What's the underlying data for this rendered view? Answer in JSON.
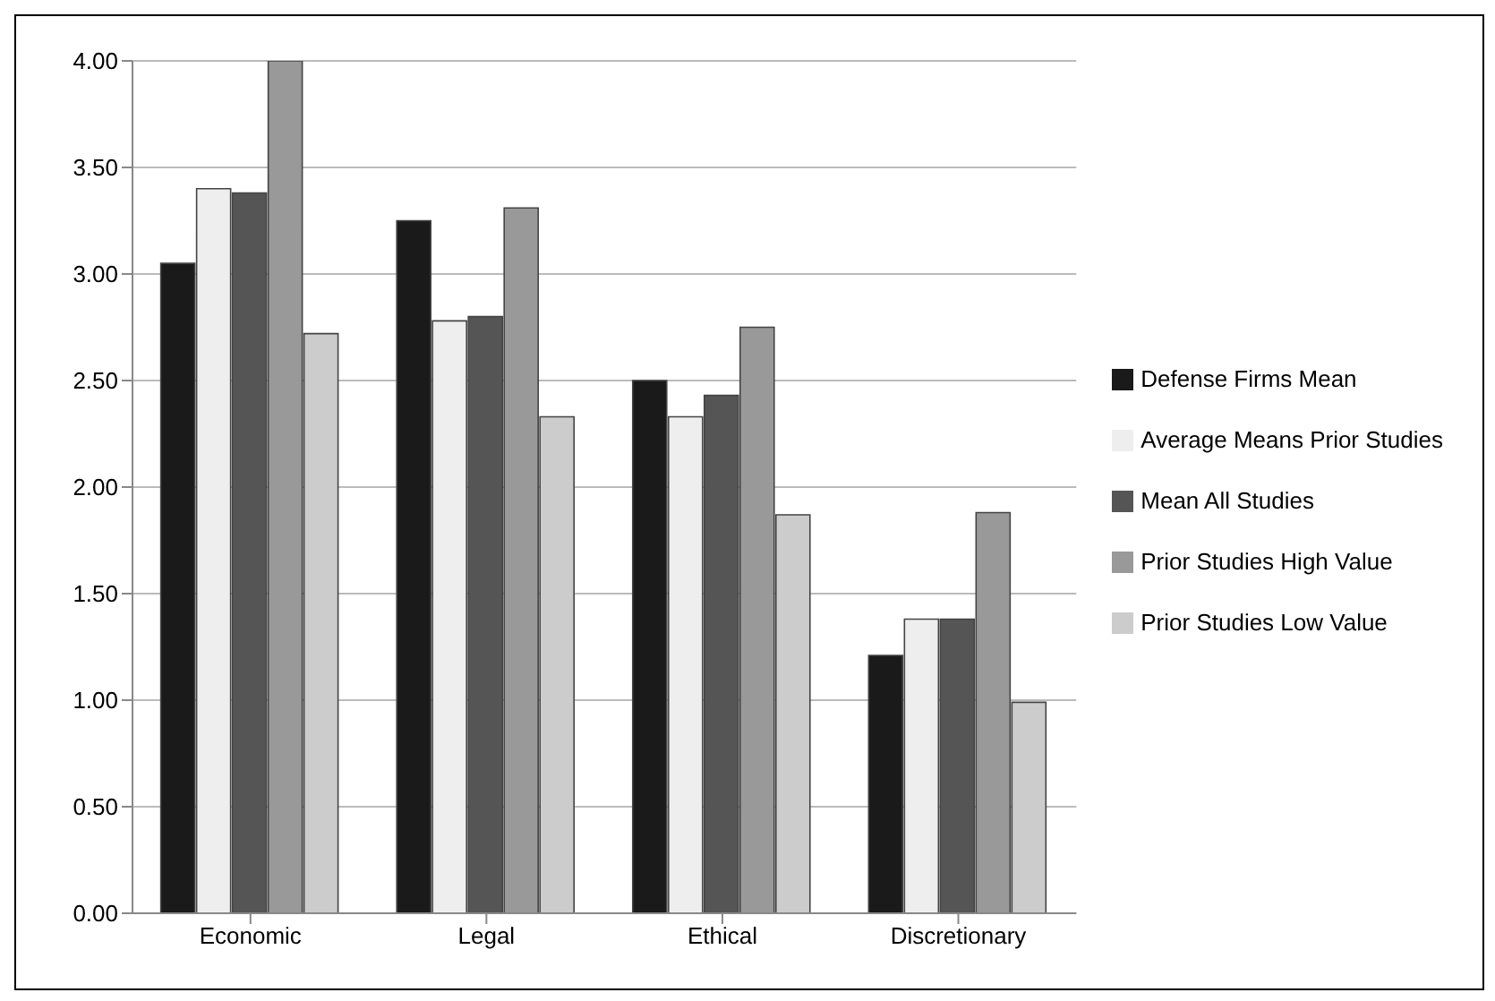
{
  "chart_data": {
    "type": "bar",
    "categories": [
      "Economic",
      "Legal",
      "Ethical",
      "Discretionary"
    ],
    "series": [
      {
        "name": "Defense  Firms Mean",
        "color": "#1a1a1a",
        "values": [
          3.05,
          3.25,
          2.5,
          1.21
        ]
      },
      {
        "name": "Average Means Prior Studies",
        "color": "#eeeeee",
        "values": [
          3.4,
          2.78,
          2.33,
          1.38
        ]
      },
      {
        "name": "Mean All Studies",
        "color": "#555555",
        "values": [
          3.38,
          2.8,
          2.43,
          1.38
        ]
      },
      {
        "name": "Prior Studies High Value",
        "color": "#999999",
        "values": [
          4.0,
          3.31,
          2.75,
          1.88
        ]
      },
      {
        "name": "Prior Studies Low Value",
        "color": "#cccccc",
        "values": [
          2.72,
          2.33,
          1.87,
          0.99
        ]
      }
    ],
    "ylim": [
      0,
      4
    ],
    "yticks": [
      {
        "value": 0,
        "label": "0.00"
      },
      {
        "value": 0.5,
        "label": "0.50"
      },
      {
        "value": 1,
        "label": "1.00"
      },
      {
        "value": 1.5,
        "label": "1.50"
      },
      {
        "value": 2,
        "label": "2.00"
      },
      {
        "value": 2.5,
        "label": "2.50"
      },
      {
        "value": 3,
        "label": "3.00"
      },
      {
        "value": 3.5,
        "label": "3.50"
      },
      {
        "value": 4,
        "label": "4.00"
      }
    ],
    "grid": "y",
    "legend": "right"
  }
}
